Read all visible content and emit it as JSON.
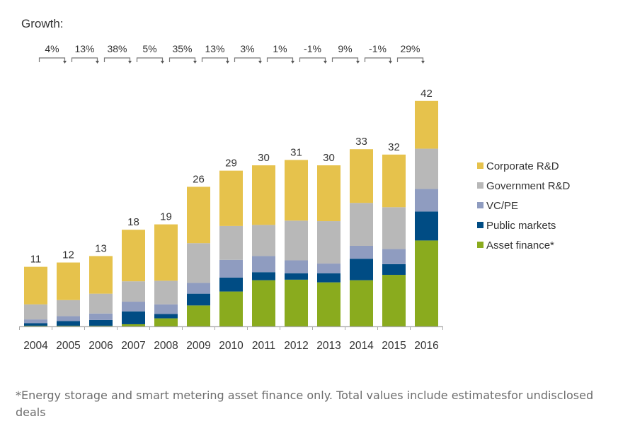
{
  "chart_data": {
    "type": "bar",
    "stacked": true,
    "title": "",
    "growth_label": "Growth:",
    "xlabel": "",
    "ylabel": "",
    "ylim": [
      0,
      42
    ],
    "grid": false,
    "legend_position": "right",
    "categories": [
      "2004",
      "2005",
      "2006",
      "2007",
      "2008",
      "2009",
      "2010",
      "2011",
      "2012",
      "2013",
      "2014",
      "2015",
      "2016"
    ],
    "totals": [
      11,
      12,
      13,
      18,
      19,
      26,
      29,
      30,
      31,
      30,
      33,
      32,
      42
    ],
    "growth": [
      "4%",
      "13%",
      "38%",
      "5%",
      "35%",
      "13%",
      "3%",
      "1%",
      "-1%",
      "9%",
      "-1%",
      "29%"
    ],
    "series": [
      {
        "name": "Asset finance*",
        "color": "#8aab1e",
        "values": [
          0.1,
          0.1,
          0.1,
          0.4,
          1.5,
          3.9,
          6.5,
          8.6,
          8.7,
          8.2,
          8.6,
          9.6,
          16.0
        ]
      },
      {
        "name": "Public markets",
        "color": "#004c84",
        "values": [
          0.5,
          0.9,
          1.1,
          2.4,
          0.8,
          2.2,
          2.6,
          1.5,
          1.2,
          1.7,
          4.0,
          2.0,
          5.4
        ]
      },
      {
        "name": "VC/PE",
        "color": "#8f9cc0",
        "values": [
          0.7,
          0.9,
          1.2,
          1.8,
          1.8,
          2.0,
          3.3,
          3.0,
          2.4,
          1.8,
          2.4,
          2.8,
          4.2
        ]
      },
      {
        "name": "Government R&D",
        "color": "#b8b8b8",
        "values": [
          2.8,
          3.0,
          3.7,
          3.8,
          4.4,
          7.4,
          6.3,
          5.8,
          7.4,
          7.9,
          8.0,
          7.8,
          7.5
        ]
      },
      {
        "name": "Corporate R&D",
        "color": "#e6c24c",
        "values": [
          7.0,
          7.0,
          7.0,
          9.6,
          10.5,
          10.5,
          10.3,
          11.1,
          11.3,
          10.4,
          10.0,
          9.8,
          8.9
        ]
      }
    ],
    "legend_order": [
      "Corporate R&D",
      "Government R&D",
      "VC/PE",
      "Public markets",
      "Asset finance*"
    ]
  },
  "footnote": "*Energy storage and smart metering asset finance only. Total values include estimatesfor undisclosed deals"
}
